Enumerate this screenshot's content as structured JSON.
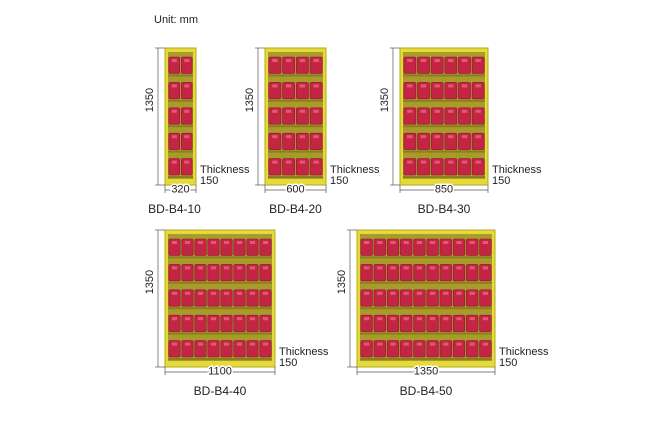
{
  "unit": "Unit: mm",
  "items": [
    {
      "model": "BD-B4-10",
      "height": "1350",
      "width": "320",
      "thickness_label": "Thickness",
      "thickness": "150"
    },
    {
      "model": "BD-B4-20",
      "height": "1350",
      "width": "600",
      "thickness_label": "Thickness",
      "thickness": "150"
    },
    {
      "model": "BD-B4-30",
      "height": "1350",
      "width": "850",
      "thickness_label": "Thickness",
      "thickness": "150"
    },
    {
      "model": "BD-B4-40",
      "height": "1350",
      "width": "1100",
      "thickness_label": "Thickness",
      "thickness": "150"
    },
    {
      "model": "BD-B4-50",
      "height": "1350",
      "width": "1350",
      "thickness_label": "Thickness",
      "thickness": "150"
    }
  ]
}
